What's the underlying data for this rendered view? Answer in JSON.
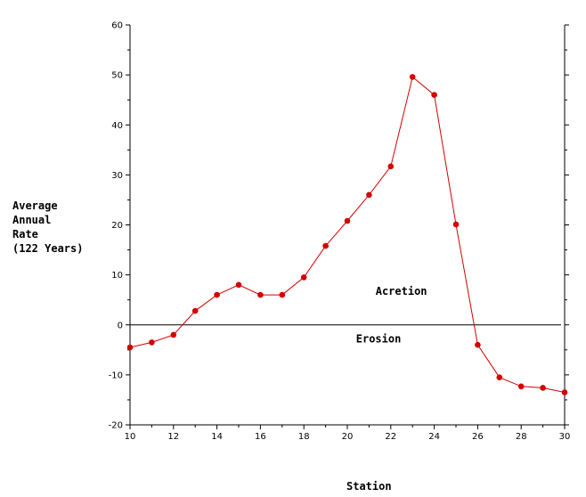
{
  "chart_data": {
    "type": "line",
    "title": "",
    "xlabel": "Station",
    "ylabel_lines": [
      "Average",
      "Annual",
      "Rate",
      "(122 Years)"
    ],
    "xlim": [
      10,
      30
    ],
    "ylim": [
      -20,
      60
    ],
    "x_ticks": [
      10,
      12,
      14,
      16,
      18,
      20,
      22,
      24,
      26,
      28,
      30
    ],
    "y_ticks": [
      -20,
      -10,
      0,
      10,
      20,
      30,
      40,
      50,
      60
    ],
    "grid": false,
    "annotations": [
      {
        "text": "Acretion",
        "x": 21.3,
        "y": 6
      },
      {
        "text": "Erosion",
        "x": 20.4,
        "y": -3.5
      }
    ],
    "series": [
      {
        "color": "#d40000",
        "x": [
          10,
          11,
          12,
          13,
          14,
          15,
          16,
          17,
          18,
          19,
          20,
          21,
          22,
          23,
          24,
          25,
          26,
          27,
          28,
          29,
          30
        ],
        "y": [
          -4.5,
          -3.5,
          -2,
          2.8,
          6,
          8,
          6,
          6,
          9.5,
          15.8,
          20.8,
          26,
          31.7,
          49.6,
          46,
          20.1,
          -4,
          -10.5,
          -12.3,
          -12.6,
          -13.5
        ]
      }
    ]
  }
}
